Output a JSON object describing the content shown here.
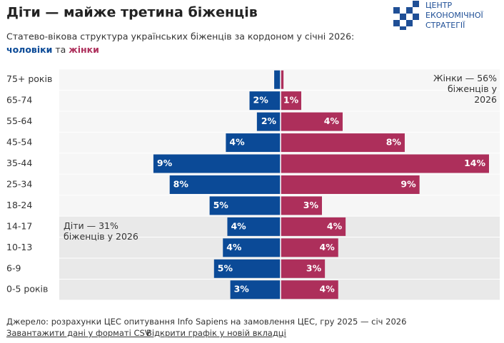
{
  "chart_data": {
    "type": "pyramid",
    "title": "Діти — майже третина біженців",
    "subtitle": "Статево-вікова структура українських біженців за кордоном у січні 2026:",
    "legend_connector": "та",
    "categories": [
      "75+ років",
      "65-74",
      "55-64",
      "45-54",
      "35-44",
      "25-34",
      "18-24",
      "14-17",
      "10-13",
      "6-9",
      "0-5 років"
    ],
    "series": [
      {
        "name": "чоловіки",
        "color": "#0b4a97",
        "side": "left",
        "values": [
          0.43,
          2.1,
          1.6,
          3.7,
          8.6,
          7.5,
          4.8,
          3.6,
          3.9,
          4.5,
          3.4
        ],
        "value_labels": [
          null,
          "2%",
          "2%",
          "4%",
          "9%",
          "8%",
          "5%",
          "4%",
          "4%",
          "5%",
          "3%"
        ]
      },
      {
        "name": "жінки",
        "color": "#ad2f5b",
        "side": "right",
        "values": [
          0.2,
          1.4,
          4.2,
          8.4,
          14.1,
          9.4,
          2.8,
          4.4,
          3.9,
          3.0,
          3.9
        ],
        "value_labels": [
          null,
          "1%",
          "4%",
          "8%",
          "14%",
          "9%",
          "3%",
          "4%",
          "4%",
          "3%",
          "4%"
        ]
      }
    ],
    "annotations": [
      {
        "text": "Жінки — 56% біженців у 2026"
      },
      {
        "text": "Діти — 31% біженців у 2026"
      }
    ]
  },
  "logo": [
    "ЦЕНТР",
    "ЕКОНОМІЧНОЇ",
    "СТРАТЕГІЇ"
  ],
  "footer": {
    "source": "Джерело: розрахунки ЦЕС опитування Info Sapiens на замовлення ЦЕС, гру 2025 — січ 2026",
    "links": [
      "Завантажити дані у форматі CSV",
      "Відкрити графік у новій вкладці"
    ]
  }
}
